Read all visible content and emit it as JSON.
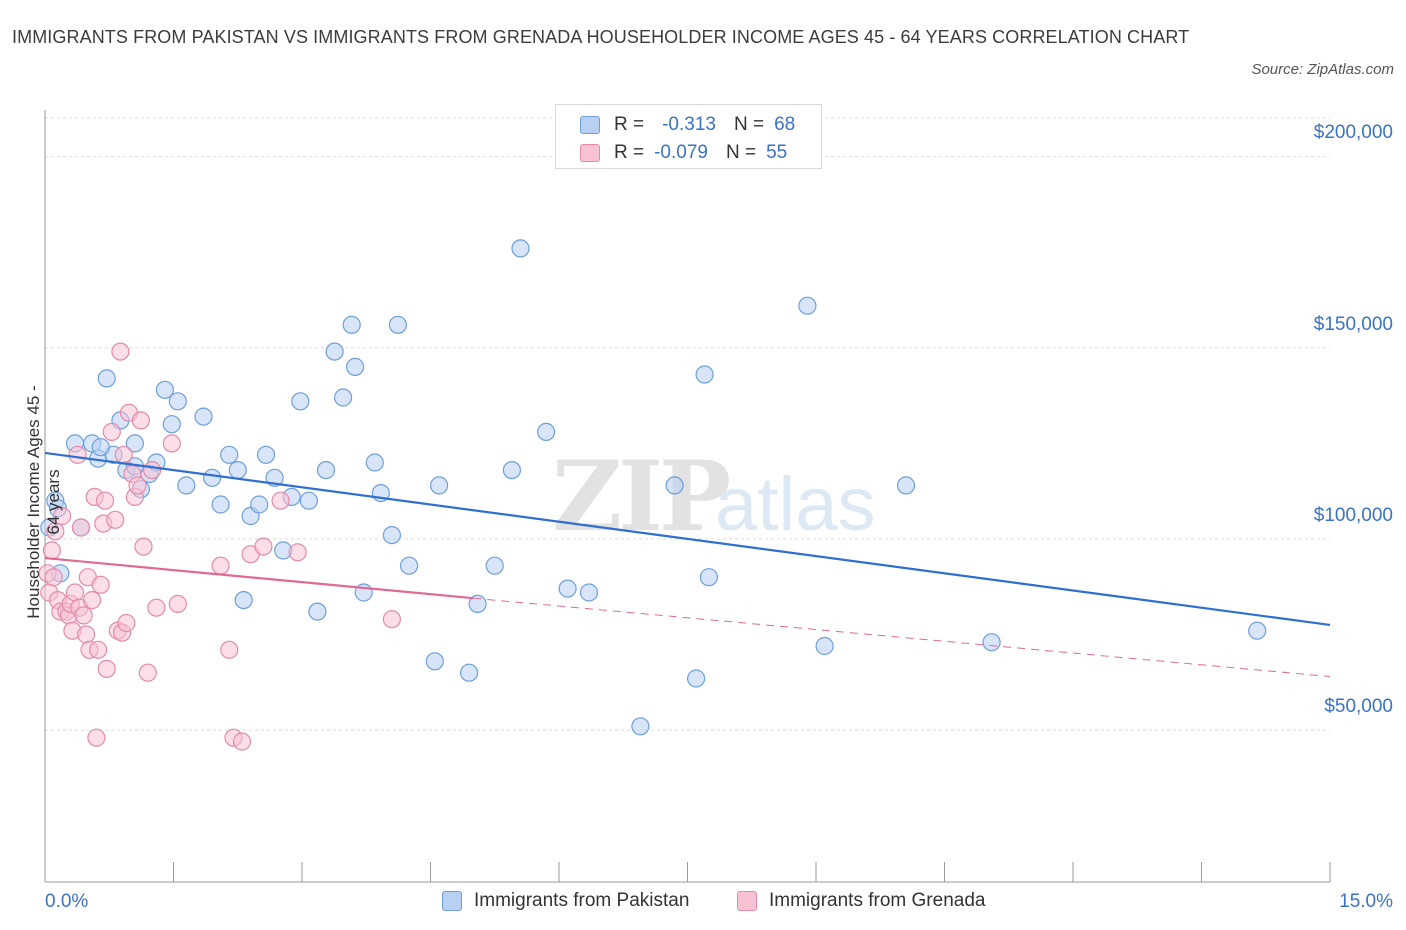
{
  "title": "IMMIGRANTS FROM PAKISTAN VS IMMIGRANTS FROM GRENADA HOUSEHOLDER INCOME AGES 45 - 64 YEARS CORRELATION CHART",
  "source": "Source: ZipAtlas.com",
  "watermark": {
    "zip": "ZIP",
    "atlas": "atlas"
  },
  "legend_top": [
    {
      "r_label": "R =",
      "r_value": "-0.313",
      "n_label": "N =",
      "n_value": "68"
    },
    {
      "r_label": "R =",
      "r_value": "-0.079",
      "n_label": "N =",
      "n_value": "55"
    }
  ],
  "colors": {
    "pakistan_fill": "#b8d0f4",
    "pakistan_stroke": "#6e9fdc",
    "pakistan_line": "#2f6fcf",
    "grenada_fill": "#f7c2d3",
    "grenada_stroke": "#e58aab",
    "grenada_line": "#e06a95",
    "grid": "#dcdcdc",
    "tick_text": "#3a72c8"
  },
  "chart_data": {
    "type": "scatter",
    "title": "IMMIGRANTS FROM PAKISTAN VS IMMIGRANTS FROM GRENADA HOUSEHOLDER INCOME AGES 45 - 64 YEARS CORRELATION CHART",
    "xlabel": "",
    "ylabel": "Householder Income Ages 45 - 64 years",
    "xlim": [
      0,
      15
    ],
    "ylim": [
      5000,
      210000
    ],
    "x_tick_labels": [
      "0.0%",
      "15.0%"
    ],
    "y_ticks": [
      50000,
      100000,
      150000,
      200000
    ],
    "y_tick_labels": [
      "$50,000",
      "$100,000",
      "$150,000",
      "$200,000"
    ],
    "grid": true,
    "legend_position": "bottom",
    "series": [
      {
        "name": "Immigrants from Pakistan",
        "r": -0.313,
        "n": 68,
        "trend": {
          "x": [
            0,
            15
          ],
          "y": [
            122500,
            77500
          ],
          "style": "solid"
        },
        "points": [
          [
            0.05,
            103000
          ],
          [
            0.12,
            110000
          ],
          [
            0.15,
            108000
          ],
          [
            0.35,
            125000
          ],
          [
            0.42,
            103000
          ],
          [
            0.55,
            125000
          ],
          [
            0.62,
            121000
          ],
          [
            0.72,
            142000
          ],
          [
            0.8,
            122000
          ],
          [
            0.88,
            131000
          ],
          [
            0.95,
            118000
          ],
          [
            1.05,
            125000
          ],
          [
            1.12,
            113000
          ],
          [
            1.22,
            117000
          ],
          [
            1.3,
            120000
          ],
          [
            1.4,
            139000
          ],
          [
            1.48,
            130000
          ],
          [
            1.55,
            136000
          ],
          [
            1.65,
            114000
          ],
          [
            1.85,
            132000
          ],
          [
            1.95,
            116000
          ],
          [
            2.05,
            109000
          ],
          [
            2.15,
            122000
          ],
          [
            2.25,
            118000
          ],
          [
            2.32,
            84000
          ],
          [
            2.4,
            106000
          ],
          [
            2.5,
            109000
          ],
          [
            2.58,
            122000
          ],
          [
            2.68,
            116000
          ],
          [
            2.78,
            97000
          ],
          [
            2.88,
            111000
          ],
          [
            2.98,
            136000
          ],
          [
            3.08,
            110000
          ],
          [
            3.18,
            81000
          ],
          [
            3.28,
            118000
          ],
          [
            3.38,
            149000
          ],
          [
            3.48,
            137000
          ],
          [
            3.58,
            156000
          ],
          [
            3.62,
            145000
          ],
          [
            3.72,
            86000
          ],
          [
            3.85,
            120000
          ],
          [
            3.92,
            112000
          ],
          [
            4.05,
            101000
          ],
          [
            4.12,
            156000
          ],
          [
            4.25,
            93000
          ],
          [
            4.55,
            68000
          ],
          [
            4.6,
            114000
          ],
          [
            4.95,
            65000
          ],
          [
            5.05,
            83000
          ],
          [
            5.25,
            93000
          ],
          [
            5.45,
            118000
          ],
          [
            5.55,
            176000
          ],
          [
            5.85,
            128000
          ],
          [
            6.1,
            87000
          ],
          [
            6.35,
            86000
          ],
          [
            6.95,
            51000
          ],
          [
            7.35,
            114000
          ],
          [
            7.6,
            63500
          ],
          [
            7.7,
            143000
          ],
          [
            7.75,
            90000
          ],
          [
            8.9,
            161000
          ],
          [
            9.1,
            72000
          ],
          [
            10.05,
            114000
          ],
          [
            11.05,
            73000
          ],
          [
            14.15,
            76000
          ],
          [
            0.18,
            91000
          ],
          [
            1.05,
            119000
          ],
          [
            0.65,
            124000
          ]
        ]
      },
      {
        "name": "Immigrants from Grenada",
        "r": -0.079,
        "n": 55,
        "trend": {
          "x": [
            0,
            5
          ],
          "y": [
            95000,
            84500
          ],
          "style": "solid",
          "extended": {
            "x": [
              5,
              15
            ],
            "y": [
              84500,
              64000
            ],
            "style": "dashed"
          }
        },
        "points": [
          [
            0.03,
            91000
          ],
          [
            0.05,
            86000
          ],
          [
            0.08,
            97000
          ],
          [
            0.1,
            90000
          ],
          [
            0.12,
            102000
          ],
          [
            0.15,
            84000
          ],
          [
            0.18,
            81000
          ],
          [
            0.2,
            106000
          ],
          [
            0.25,
            81000
          ],
          [
            0.28,
            80000
          ],
          [
            0.3,
            83000
          ],
          [
            0.32,
            76000
          ],
          [
            0.35,
            86000
          ],
          [
            0.38,
            122000
          ],
          [
            0.4,
            82000
          ],
          [
            0.42,
            103000
          ],
          [
            0.45,
            80000
          ],
          [
            0.48,
            75000
          ],
          [
            0.5,
            90000
          ],
          [
            0.52,
            71000
          ],
          [
            0.55,
            84000
          ],
          [
            0.58,
            111000
          ],
          [
            0.6,
            48000
          ],
          [
            0.62,
            71000
          ],
          [
            0.65,
            88000
          ],
          [
            0.68,
            104000
          ],
          [
            0.7,
            110000
          ],
          [
            0.72,
            66000
          ],
          [
            0.78,
            128000
          ],
          [
            0.82,
            105000
          ],
          [
            0.85,
            76000
          ],
          [
            0.88,
            149000
          ],
          [
            0.9,
            75500
          ],
          [
            0.92,
            122000
          ],
          [
            0.95,
            78000
          ],
          [
            0.98,
            133000
          ],
          [
            1.02,
            117000
          ],
          [
            1.05,
            111000
          ],
          [
            1.08,
            114000
          ],
          [
            1.12,
            131000
          ],
          [
            1.15,
            98000
          ],
          [
            1.2,
            65000
          ],
          [
            1.25,
            118000
          ],
          [
            1.3,
            82000
          ],
          [
            1.48,
            125000
          ],
          [
            1.55,
            83000
          ],
          [
            2.05,
            93000
          ],
          [
            2.15,
            71000
          ],
          [
            2.2,
            48000
          ],
          [
            2.3,
            47000
          ],
          [
            2.4,
            96000
          ],
          [
            2.55,
            98000
          ],
          [
            2.75,
            110000
          ],
          [
            2.95,
            96500
          ],
          [
            4.05,
            79000
          ]
        ]
      }
    ]
  }
}
